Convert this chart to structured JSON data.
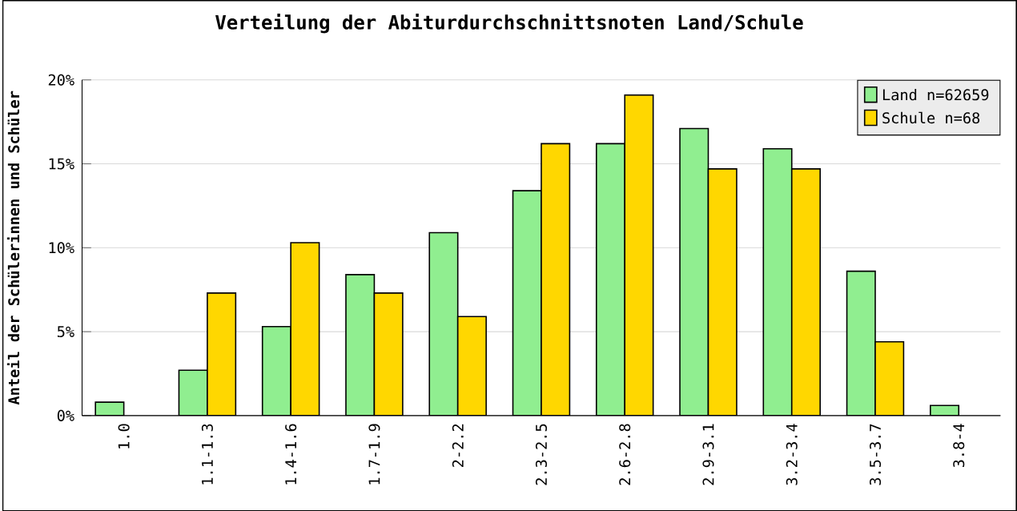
{
  "chart_data": {
    "type": "bar",
    "title": "Verteilung der Abiturdurchschnittsnoten Land/Schule",
    "ylabel": "Anteil der Schülerinnen und Schüler",
    "categories": [
      "1.0",
      "1.1-1.3",
      "1.4-1.6",
      "1.7-1.9",
      "2-2.2",
      "2.3-2.5",
      "2.6-2.8",
      "2.9-3.1",
      "3.2-3.4",
      "3.5-3.7",
      "3.8-4"
    ],
    "series": [
      {
        "name": "Land n=62659",
        "color": "#90ee90",
        "values": [
          0.8,
          2.7,
          5.3,
          8.4,
          10.9,
          13.4,
          16.2,
          17.1,
          15.9,
          8.6,
          0.6
        ]
      },
      {
        "name": "Schule n=68",
        "color": "#ffd700",
        "values": [
          null,
          7.3,
          10.3,
          7.3,
          5.9,
          16.2,
          19.1,
          14.7,
          14.7,
          4.4,
          null
        ]
      }
    ],
    "ylim": [
      0,
      20
    ],
    "yticks": [
      {
        "value": 0,
        "label": "0%"
      },
      {
        "value": 5,
        "label": "5%"
      },
      {
        "value": 10,
        "label": "10%"
      },
      {
        "value": 15,
        "label": "15%"
      },
      {
        "value": 20,
        "label": "20%"
      }
    ],
    "grid": "y",
    "legend": "top right"
  }
}
